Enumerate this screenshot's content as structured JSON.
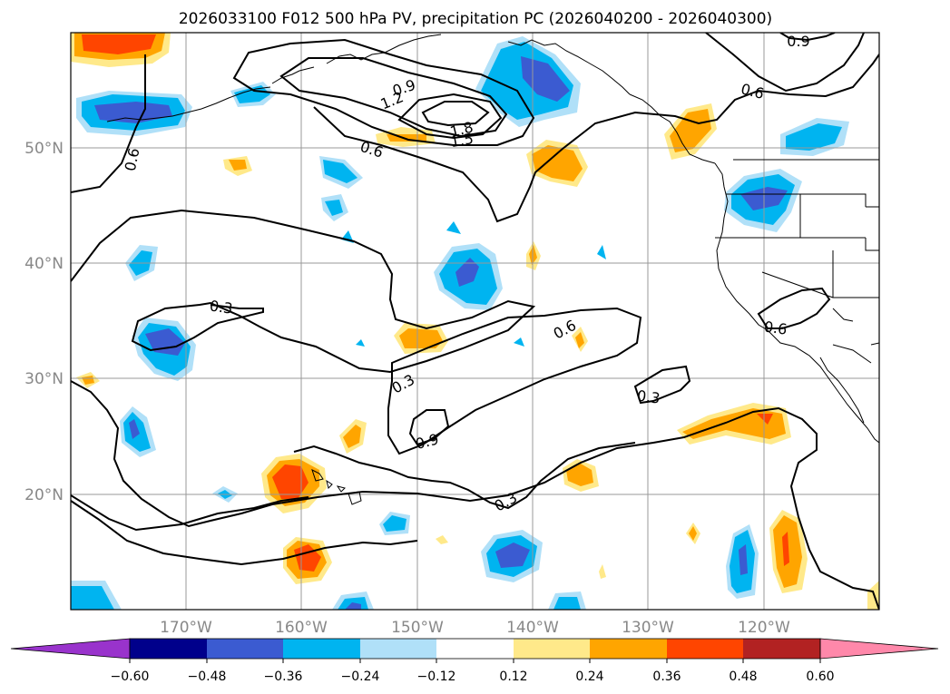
{
  "title": "2026033100 F012 500 hPa PV, precipitation PC (2026040200 - 2026040300)",
  "lat_labels": [
    "50°N",
    "40°N",
    "30°N",
    "20°N"
  ],
  "lon_labels": [
    "170°W",
    "160°W",
    "150°W",
    "140°W",
    "130°W",
    "120°W"
  ],
  "contour_labels": {
    "c09_top": "0.9",
    "c06_ne": "0.6",
    "c09_a": "0.9",
    "c12": "1.2",
    "c18": "1.8",
    "c15": "1.5",
    "c06_mid": "0.6",
    "c06_west": "0.6",
    "c03_w": "0.3",
    "c06_c": "0.6",
    "c03_c": "0.3",
    "c03_e": "0.3",
    "c09_s": "0.9",
    "c03_s": "0.3",
    "c06_coast": "0.6"
  },
  "colorbar": {
    "ticks": [
      "−0.60",
      "−0.48",
      "−0.36",
      "−0.24",
      "−0.12",
      "0.12",
      "0.24",
      "0.36",
      "0.48",
      "0.60"
    ],
    "colors": [
      "#9933cc",
      "#00008b",
      "#3b5bd1",
      "#00b4f0",
      "#b0e0f8",
      "#ffffff",
      "#ffe98a",
      "#ffa500",
      "#ff4500",
      "#b22222",
      "#ff88aa"
    ]
  },
  "legend_scale": {
    "label": "precipitation PC",
    "min": -0.6,
    "max": 0.6,
    "step": 0.12
  },
  "map_colors": {
    "blue_light": "#b0e0f8",
    "blue_mid": "#00b4f0",
    "blue_dark": "#3b5bd1",
    "orange_light": "#ffe98a",
    "orange_mid": "#ffa500",
    "orange_dark": "#ff4500"
  }
}
